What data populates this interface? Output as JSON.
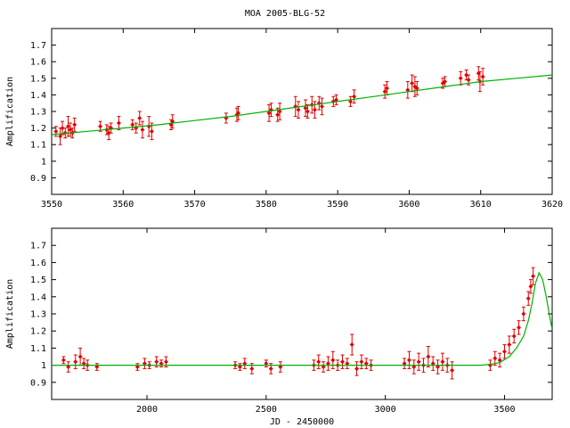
{
  "figure": {
    "title": "MOA 2005-BLG-52",
    "colors": {
      "data": "#e00000",
      "model": "#00b000",
      "axes": "#000000"
    }
  },
  "chart_data": [
    {
      "type": "scatter",
      "xlabel": "",
      "ylabel": "Amplification",
      "xlim": [
        3550,
        3620
      ],
      "ylim": [
        0.8,
        1.8
      ],
      "xticks": [
        3550,
        3560,
        3570,
        3580,
        3590,
        3600,
        3610,
        3620
      ],
      "yticks": [
        0.9,
        1,
        1.1,
        1.2,
        1.3,
        1.4,
        1.5,
        1.6,
        1.7
      ],
      "grid": false,
      "model": {
        "x": [
          3550,
          3555,
          3560,
          3565,
          3570,
          3575,
          3580,
          3585,
          3590,
          3595,
          3600,
          3605,
          3610,
          3615,
          3620
        ],
        "y": [
          1.16,
          1.18,
          1.2,
          1.22,
          1.245,
          1.27,
          1.3,
          1.33,
          1.36,
          1.39,
          1.42,
          1.45,
          1.48,
          1.5,
          1.52
        ]
      },
      "points": {
        "x": [
          3550.6,
          3551.2,
          3551.5,
          3551.9,
          3552.3,
          3552.6,
          3552.9,
          3553.2,
          3556.8,
          3557.7,
          3558.0,
          3558.3,
          3559.4,
          3561.3,
          3561.8,
          3562.3,
          3562.7,
          3563.6,
          3564.0,
          3566.7,
          3566.9,
          3574.4,
          3575.9,
          3576.1,
          3580.4,
          3580.7,
          3581.6,
          3581.9,
          3584.1,
          3584.5,
          3585.5,
          3585.8,
          3586.4,
          3586.8,
          3587.4,
          3587.8,
          3589.4,
          3589.8,
          3591.8,
          3592.3,
          3596.6,
          3596.9,
          3599.8,
          3600.4,
          3600.8,
          3601.1,
          3604.7,
          3605.0,
          3607.2,
          3608.0,
          3608.3,
          3609.7,
          3609.9,
          3610.3
        ],
        "y": [
          1.18,
          1.15,
          1.2,
          1.17,
          1.21,
          1.19,
          1.17,
          1.22,
          1.21,
          1.19,
          1.17,
          1.2,
          1.23,
          1.22,
          1.2,
          1.26,
          1.19,
          1.21,
          1.18,
          1.22,
          1.24,
          1.26,
          1.28,
          1.29,
          1.29,
          1.31,
          1.28,
          1.3,
          1.33,
          1.31,
          1.32,
          1.3,
          1.34,
          1.31,
          1.35,
          1.33,
          1.36,
          1.37,
          1.36,
          1.39,
          1.42,
          1.44,
          1.43,
          1.47,
          1.45,
          1.44,
          1.47,
          1.48,
          1.5,
          1.52,
          1.49,
          1.53,
          1.48,
          1.51
        ],
        "err": [
          0.03,
          0.05,
          0.04,
          0.03,
          0.06,
          0.04,
          0.03,
          0.04,
          0.03,
          0.03,
          0.04,
          0.03,
          0.04,
          0.03,
          0.03,
          0.04,
          0.05,
          0.06,
          0.05,
          0.03,
          0.04,
          0.03,
          0.04,
          0.04,
          0.05,
          0.04,
          0.04,
          0.05,
          0.06,
          0.05,
          0.05,
          0.04,
          0.05,
          0.05,
          0.04,
          0.05,
          0.03,
          0.03,
          0.03,
          0.04,
          0.04,
          0.04,
          0.05,
          0.05,
          0.06,
          0.04,
          0.03,
          0.03,
          0.04,
          0.03,
          0.03,
          0.04,
          0.06,
          0.05
        ]
      }
    },
    {
      "type": "scatter",
      "xlabel": "JD - 2450000",
      "ylabel": "Amplification",
      "xlim": [
        1600,
        3700
      ],
      "ylim": [
        0.8,
        1.8
      ],
      "xticks": [
        2000,
        2500,
        3000,
        3500
      ],
      "yticks": [
        0.9,
        1,
        1.1,
        1.2,
        1.3,
        1.4,
        1.5,
        1.6,
        1.7
      ],
      "grid": false,
      "model": {
        "x": [
          1600,
          3400,
          3440,
          3480,
          3520,
          3550,
          3580,
          3600,
          3615,
          3630,
          3645,
          3660,
          3675,
          3690,
          3700
        ],
        "y": [
          1.0,
          1.0,
          1.005,
          1.015,
          1.05,
          1.1,
          1.17,
          1.26,
          1.36,
          1.48,
          1.54,
          1.5,
          1.4,
          1.28,
          1.21
        ]
      },
      "points": {
        "x": [
          1650,
          1670,
          1700,
          1720,
          1735,
          1750,
          1790,
          1960,
          1990,
          2010,
          2040,
          2060,
          2080,
          2370,
          2390,
          2410,
          2440,
          2500,
          2520,
          2560,
          2700,
          2720,
          2740,
          2760,
          2780,
          2800,
          2820,
          2840,
          2860,
          2880,
          2900,
          2920,
          2940,
          3080,
          3100,
          3120,
          3140,
          3160,
          3180,
          3200,
          3220,
          3240,
          3260,
          3280,
          3440,
          3460,
          3480,
          3500,
          3520,
          3540,
          3560,
          3580,
          3600,
          3610,
          3620
        ],
        "y": [
          1.03,
          0.99,
          1.02,
          1.05,
          1.01,
          1.0,
          0.99,
          0.99,
          1.01,
          1.0,
          1.02,
          1.01,
          1.02,
          1.0,
          0.99,
          1.01,
          0.98,
          1.01,
          0.98,
          0.99,
          1.0,
          1.02,
          0.99,
          1.01,
          1.03,
          1.0,
          1.02,
          1.01,
          1.12,
          0.98,
          1.02,
          1.01,
          1.0,
          1.01,
          1.03,
          0.99,
          1.02,
          1.0,
          1.05,
          1.01,
          0.99,
          1.02,
          1.0,
          0.97,
          1.0,
          1.04,
          1.03,
          1.08,
          1.12,
          1.17,
          1.22,
          1.3,
          1.39,
          1.46,
          1.52
        ],
        "err": [
          0.02,
          0.03,
          0.04,
          0.05,
          0.03,
          0.03,
          0.02,
          0.02,
          0.03,
          0.02,
          0.03,
          0.02,
          0.03,
          0.02,
          0.02,
          0.03,
          0.03,
          0.02,
          0.03,
          0.03,
          0.03,
          0.04,
          0.03,
          0.04,
          0.05,
          0.03,
          0.04,
          0.03,
          0.06,
          0.04,
          0.04,
          0.03,
          0.03,
          0.03,
          0.05,
          0.04,
          0.05,
          0.04,
          0.06,
          0.04,
          0.04,
          0.05,
          0.04,
          0.05,
          0.03,
          0.04,
          0.04,
          0.04,
          0.05,
          0.04,
          0.04,
          0.04,
          0.04,
          0.04,
          0.05
        ]
      }
    }
  ]
}
